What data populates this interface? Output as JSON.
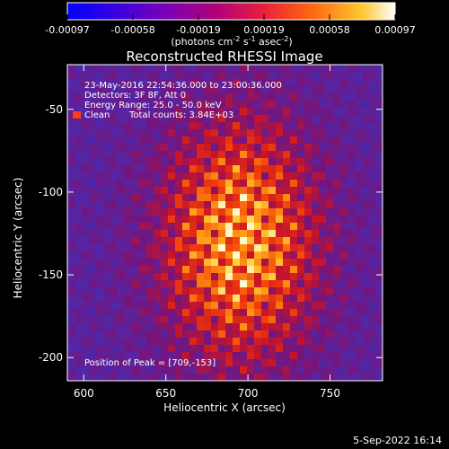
{
  "chart_data": {
    "type": "heatmap",
    "title": "Reconstructed RHESSI Image",
    "xlabel": "Heliocentric X (arcsec)",
    "ylabel": "Heliocentric Y (arcsec)",
    "xlim": [
      590,
      782
    ],
    "ylim": [
      -214,
      -23
    ],
    "x_ticks": [
      600,
      650,
      700,
      750
    ],
    "y_ticks": [
      -50,
      -100,
      -150,
      -200
    ],
    "colorbar": {
      "range": [
        -0.00097,
        0.00097
      ],
      "ticks": [
        "-0.00097",
        "-0.00058",
        "-0.00019",
        "0.00019",
        "0.00058",
        "0.00097"
      ],
      "unit_main": "(photons cm",
      "unit_exp1": "-2",
      "unit_mid1": " s",
      "unit_exp2": "-1",
      "unit_mid2": " asec",
      "unit_exp3": "-2",
      "unit_end": ")"
    },
    "annotations": {
      "time_range": "23-May-2016 22:54:36.000 to 23:00:36.000",
      "detectors": "Detectors: 3F 8F, Att 0",
      "energy": "Energy Range: 25.0 - 50.0 keV",
      "clean_label": "Clean",
      "total_counts": "Total counts: 3.84E+03",
      "peak": "Position of Peak = [709,-153]"
    },
    "peak_position": [
      709,
      -153
    ],
    "clean_marker_color": "#ff3a1a"
  },
  "footer": {
    "date": "5-Sep-2022 16:14"
  }
}
